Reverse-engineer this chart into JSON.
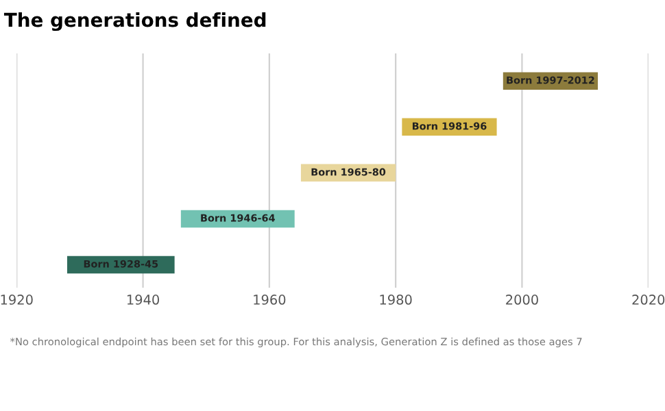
{
  "chart_data": {
    "type": "bar",
    "orientation": "horizontal",
    "title": "The generations defined",
    "categories": [
      null,
      null,
      null,
      null,
      null
    ],
    "base": [
      1997,
      1981,
      1965,
      1946,
      1928
    ],
    "values": [
      15,
      15,
      15,
      18,
      17
    ],
    "colors": [
      "#8c7b3c",
      "#d8b84a",
      "#e8d69c",
      "#72c2b2",
      "#2e6b5b"
    ],
    "value_labels": [
      "Born 1997-2012",
      "Born 1981-96",
      "Born 1965-80",
      "Born 1946-64",
      "Born 1928-45"
    ],
    "xlim": [
      1920,
      2020
    ],
    "xticks": [
      1920,
      1940,
      1960,
      1980,
      2000,
      2020
    ],
    "grid": "x",
    "tick_labels": "x",
    "annotations": [
      "*No chronological endpoint has been set for this group. For this analysis, Generation Z is defined as those ages 7"
    ]
  }
}
